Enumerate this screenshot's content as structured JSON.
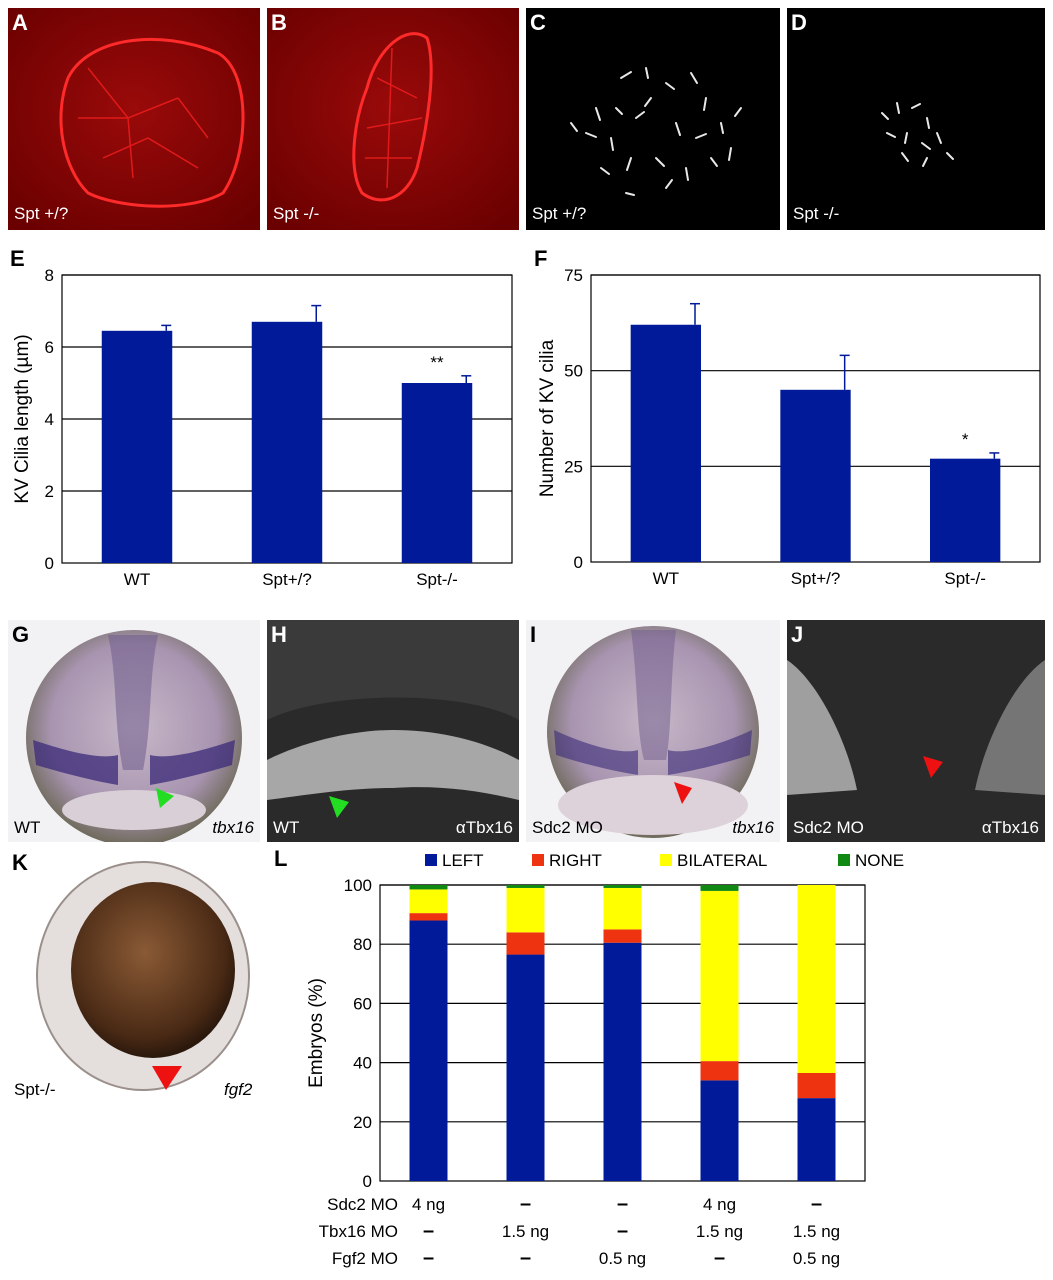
{
  "panels": {
    "A": {
      "letter": "A",
      "caption": "Spt +/?"
    },
    "B": {
      "letter": "B",
      "caption": "Spt -/-"
    },
    "C": {
      "letter": "C",
      "caption": "Spt +/?"
    },
    "D": {
      "letter": "D",
      "caption": "Spt -/-"
    },
    "G": {
      "letter": "G",
      "caption": "WT",
      "gene": "tbx16"
    },
    "H": {
      "letter": "H",
      "caption": "WT",
      "gene": "αTbx16"
    },
    "I": {
      "letter": "I",
      "caption": "Sdc2 MO",
      "gene": "tbx16"
    },
    "J": {
      "letter": "J",
      "caption": "Sdc2 MO",
      "gene": "αTbx16"
    },
    "K": {
      "letter": "K",
      "caption": "Spt-/-",
      "gene": "fgf2"
    }
  },
  "colors": {
    "bar": "#001a99",
    "left": "#001a99",
    "right": "#ee3311",
    "bilateral": "#ffff00",
    "none": "#118811",
    "green_arrow": "#22dd22",
    "red_arrow": "#ee1111"
  },
  "chart_data": [
    {
      "panel": "E",
      "type": "bar",
      "categories": [
        "WT",
        "Spt+/?",
        "Spt-/-"
      ],
      "values": [
        6.45,
        6.7,
        5.0
      ],
      "errors": [
        0.15,
        0.45,
        0.2
      ],
      "annotations": [
        "",
        "",
        "**"
      ],
      "ylabel": "KV Cilia length (µm)",
      "ylim": [
        0,
        8
      ],
      "yticks": [
        0,
        2,
        4,
        6,
        8
      ],
      "grid": true
    },
    {
      "panel": "F",
      "type": "bar",
      "categories": [
        "WT",
        "Spt+/?",
        "Spt-/-"
      ],
      "values": [
        62,
        45,
        27
      ],
      "errors": [
        5.5,
        9,
        1.5
      ],
      "annotations": [
        "",
        "",
        "*"
      ],
      "ylabel": "Number of KV cilia",
      "ylim": [
        0,
        75
      ],
      "yticks": [
        0,
        25,
        50,
        75
      ],
      "grid": true
    },
    {
      "panel": "L",
      "type": "bar",
      "stacked": true,
      "ylabel": "Embryos (%)",
      "ylim": [
        0,
        100
      ],
      "yticks": [
        0,
        20,
        40,
        60,
        80,
        100
      ],
      "grid": true,
      "legend": [
        "LEFT",
        "RIGHT",
        "BILATERAL",
        "NONE"
      ],
      "legend_position": "top",
      "series": [
        {
          "name": "LEFT",
          "values": [
            88,
            76.5,
            80.5,
            34,
            28
          ]
        },
        {
          "name": "RIGHT",
          "values": [
            2.5,
            7.5,
            4.5,
            6.5,
            8.5
          ]
        },
        {
          "name": "BILATERAL",
          "values": [
            8,
            15,
            14,
            57.5,
            63.5
          ]
        },
        {
          "name": "NONE",
          "values": [
            1.5,
            1,
            1,
            2,
            0
          ]
        }
      ],
      "conditions": [
        {
          "label": "Sdc2 MO",
          "values": [
            "4 ng",
            "–",
            "–",
            "4 ng",
            "–"
          ]
        },
        {
          "label": "Tbx16 MO",
          "values": [
            "–",
            "1.5 ng",
            "–",
            "1.5 ng",
            "1.5 ng"
          ]
        },
        {
          "label": "Fgf2 MO",
          "values": [
            "–",
            "–",
            "0.5 ng",
            "–",
            "0.5 ng"
          ]
        }
      ]
    }
  ]
}
